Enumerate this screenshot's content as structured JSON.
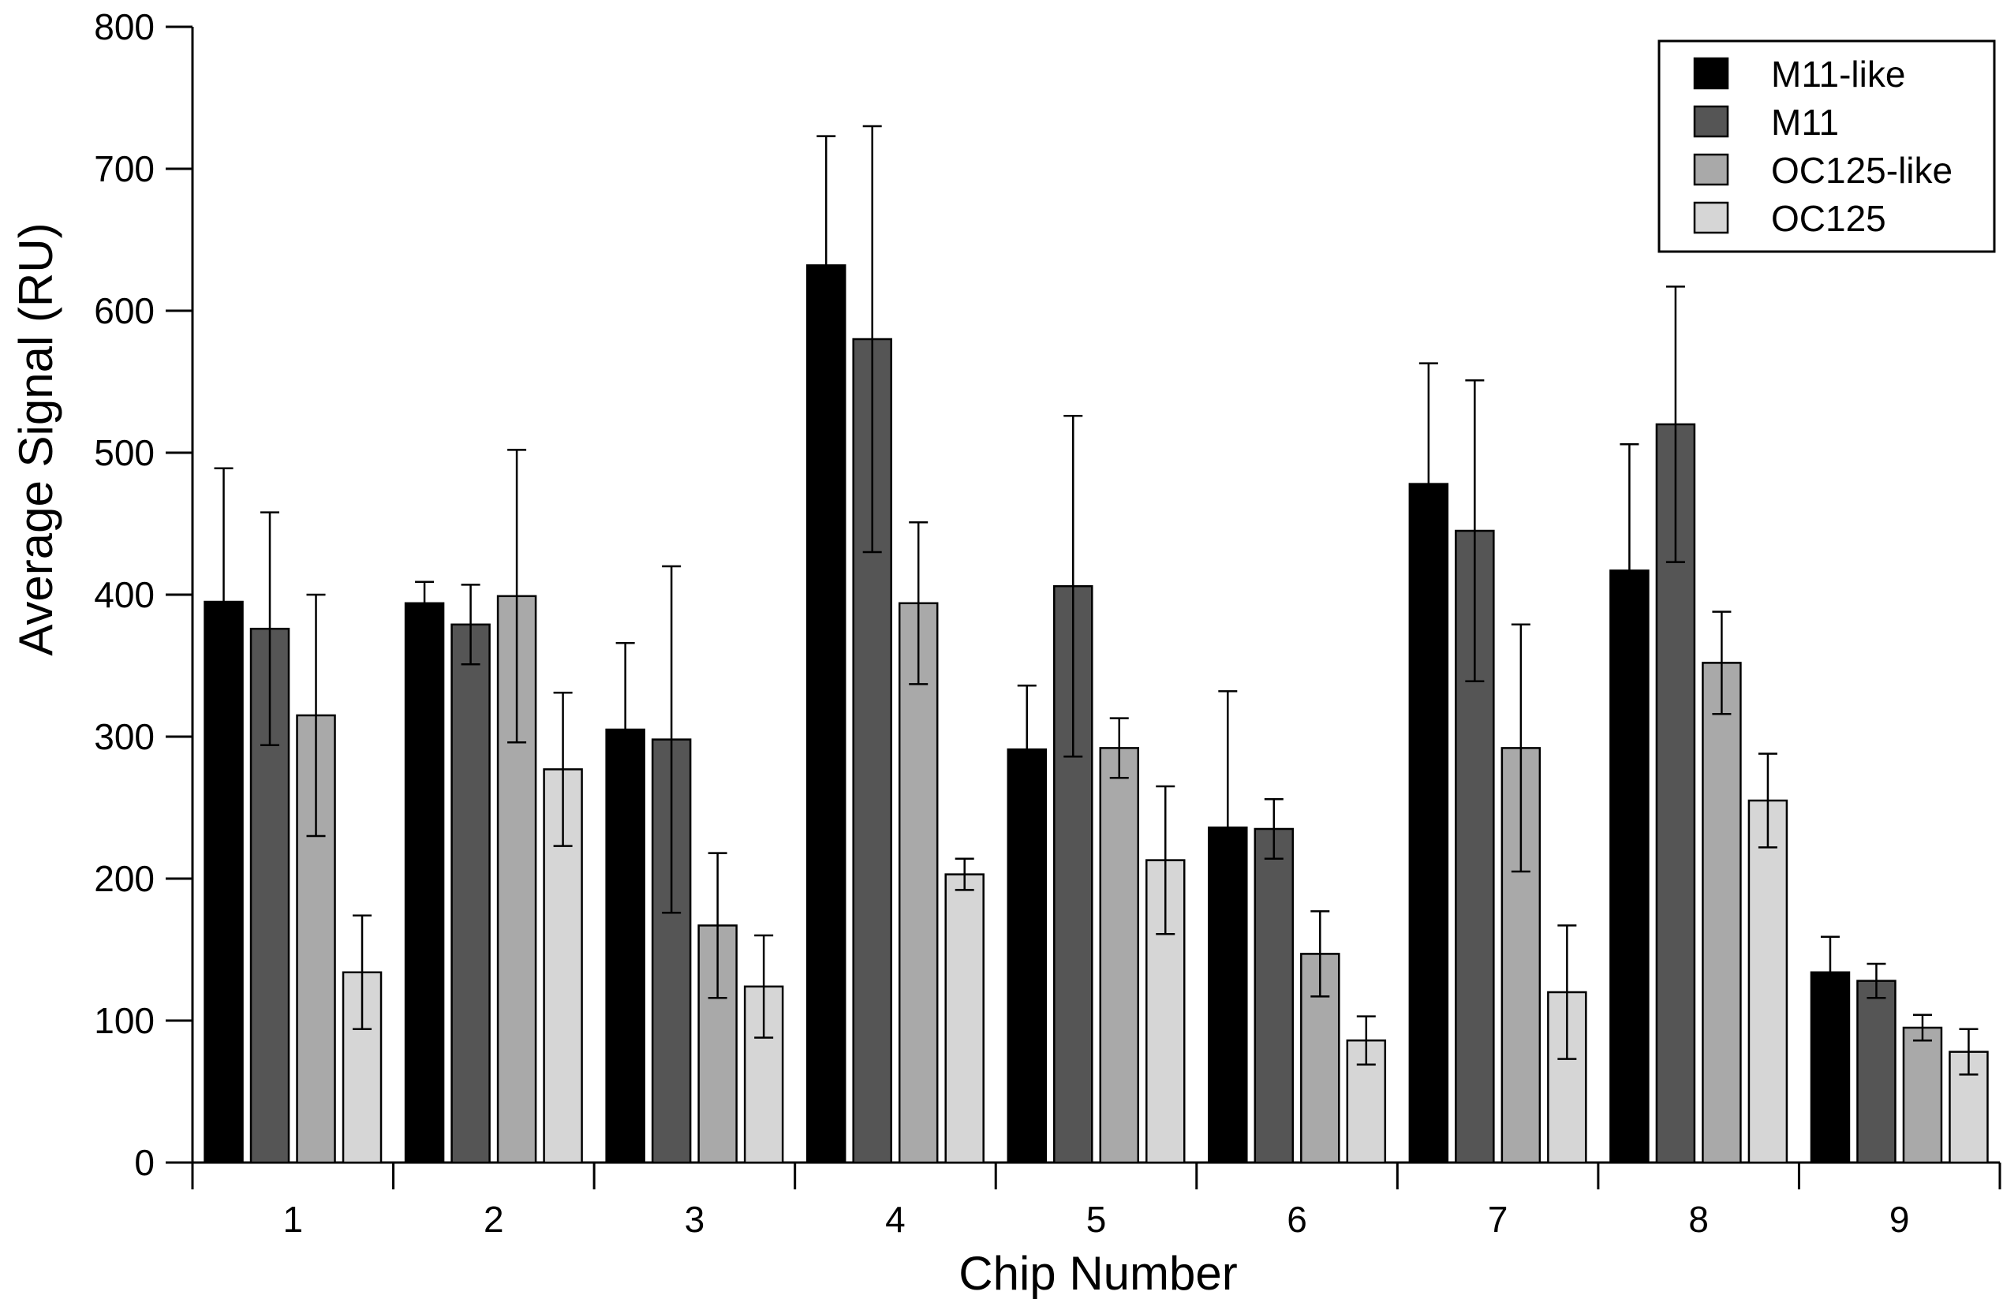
{
  "chart_data": {
    "type": "bar",
    "title": "",
    "xlabel": "Chip Number",
    "ylabel": "Average Signal (RU)",
    "ylim": [
      0,
      800
    ],
    "yticks": [
      0,
      100,
      200,
      300,
      400,
      500,
      600,
      700,
      800
    ],
    "categories": [
      "1",
      "2",
      "3",
      "4",
      "5",
      "6",
      "7",
      "8",
      "9"
    ],
    "series": [
      {
        "name": "M11-like",
        "color": "#000000",
        "values": [
          395,
          394,
          305,
          632,
          291,
          236,
          478,
          417,
          134
        ],
        "errors": [
          94,
          15,
          61,
          91,
          45,
          96,
          85,
          89,
          25
        ]
      },
      {
        "name": "M11",
        "color": "#555555",
        "values": [
          376,
          379,
          298,
          580,
          406,
          235,
          445,
          520,
          128
        ],
        "errors": [
          82,
          28,
          122,
          150,
          120,
          21,
          106,
          97,
          12
        ]
      },
      {
        "name": "OC125-like",
        "color": "#a9a9a9",
        "values": [
          315,
          399,
          167,
          394,
          292,
          147,
          292,
          352,
          95
        ],
        "errors": [
          85,
          103,
          51,
          57,
          21,
          30,
          87,
          36,
          9
        ]
      },
      {
        "name": "OC125",
        "color": "#d6d6d6",
        "values": [
          134,
          277,
          124,
          203,
          213,
          86,
          120,
          255,
          78
        ],
        "errors": [
          40,
          54,
          36,
          11,
          52,
          17,
          47,
          33,
          16
        ]
      }
    ],
    "legend_position": "top-right",
    "grid": false
  }
}
